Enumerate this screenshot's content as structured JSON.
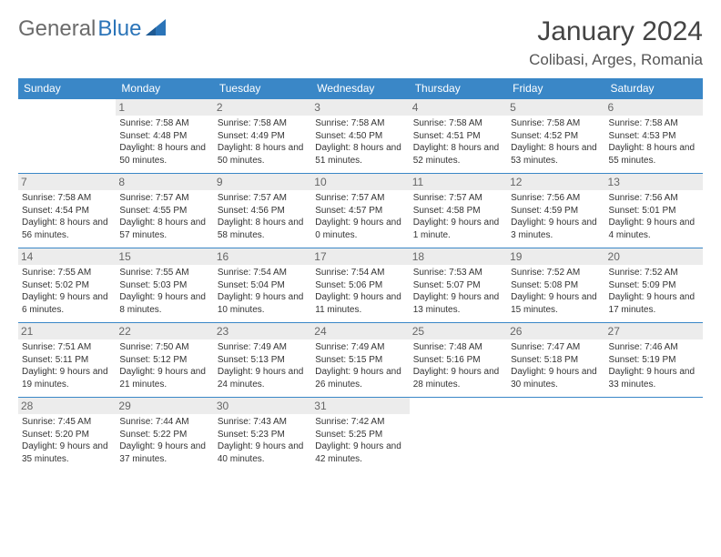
{
  "logo": {
    "text1": "General",
    "text2": "Blue"
  },
  "title": "January 2024",
  "location": "Colibasi, Arges, Romania",
  "colors": {
    "header_bg": "#3a87c7",
    "header_text": "#ffffff",
    "border": "#3a87c7",
    "daynum_bg": "#ececec",
    "logo_gray": "#6b6b6b",
    "logo_blue": "#2b74b8"
  },
  "weekdays": [
    "Sunday",
    "Monday",
    "Tuesday",
    "Wednesday",
    "Thursday",
    "Friday",
    "Saturday"
  ],
  "grid": {
    "start_weekday": 1,
    "days_in_month": 31
  },
  "days": {
    "1": {
      "sunrise": "7:58 AM",
      "sunset": "4:48 PM",
      "daylight": "8 hours and 50 minutes."
    },
    "2": {
      "sunrise": "7:58 AM",
      "sunset": "4:49 PM",
      "daylight": "8 hours and 50 minutes."
    },
    "3": {
      "sunrise": "7:58 AM",
      "sunset": "4:50 PM",
      "daylight": "8 hours and 51 minutes."
    },
    "4": {
      "sunrise": "7:58 AM",
      "sunset": "4:51 PM",
      "daylight": "8 hours and 52 minutes."
    },
    "5": {
      "sunrise": "7:58 AM",
      "sunset": "4:52 PM",
      "daylight": "8 hours and 53 minutes."
    },
    "6": {
      "sunrise": "7:58 AM",
      "sunset": "4:53 PM",
      "daylight": "8 hours and 55 minutes."
    },
    "7": {
      "sunrise": "7:58 AM",
      "sunset": "4:54 PM",
      "daylight": "8 hours and 56 minutes."
    },
    "8": {
      "sunrise": "7:57 AM",
      "sunset": "4:55 PM",
      "daylight": "8 hours and 57 minutes."
    },
    "9": {
      "sunrise": "7:57 AM",
      "sunset": "4:56 PM",
      "daylight": "8 hours and 58 minutes."
    },
    "10": {
      "sunrise": "7:57 AM",
      "sunset": "4:57 PM",
      "daylight": "9 hours and 0 minutes."
    },
    "11": {
      "sunrise": "7:57 AM",
      "sunset": "4:58 PM",
      "daylight": "9 hours and 1 minute."
    },
    "12": {
      "sunrise": "7:56 AM",
      "sunset": "4:59 PM",
      "daylight": "9 hours and 3 minutes."
    },
    "13": {
      "sunrise": "7:56 AM",
      "sunset": "5:01 PM",
      "daylight": "9 hours and 4 minutes."
    },
    "14": {
      "sunrise": "7:55 AM",
      "sunset": "5:02 PM",
      "daylight": "9 hours and 6 minutes."
    },
    "15": {
      "sunrise": "7:55 AM",
      "sunset": "5:03 PM",
      "daylight": "9 hours and 8 minutes."
    },
    "16": {
      "sunrise": "7:54 AM",
      "sunset": "5:04 PM",
      "daylight": "9 hours and 10 minutes."
    },
    "17": {
      "sunrise": "7:54 AM",
      "sunset": "5:06 PM",
      "daylight": "9 hours and 11 minutes."
    },
    "18": {
      "sunrise": "7:53 AM",
      "sunset": "5:07 PM",
      "daylight": "9 hours and 13 minutes."
    },
    "19": {
      "sunrise": "7:52 AM",
      "sunset": "5:08 PM",
      "daylight": "9 hours and 15 minutes."
    },
    "20": {
      "sunrise": "7:52 AM",
      "sunset": "5:09 PM",
      "daylight": "9 hours and 17 minutes."
    },
    "21": {
      "sunrise": "7:51 AM",
      "sunset": "5:11 PM",
      "daylight": "9 hours and 19 minutes."
    },
    "22": {
      "sunrise": "7:50 AM",
      "sunset": "5:12 PM",
      "daylight": "9 hours and 21 minutes."
    },
    "23": {
      "sunrise": "7:49 AM",
      "sunset": "5:13 PM",
      "daylight": "9 hours and 24 minutes."
    },
    "24": {
      "sunrise": "7:49 AM",
      "sunset": "5:15 PM",
      "daylight": "9 hours and 26 minutes."
    },
    "25": {
      "sunrise": "7:48 AM",
      "sunset": "5:16 PM",
      "daylight": "9 hours and 28 minutes."
    },
    "26": {
      "sunrise": "7:47 AM",
      "sunset": "5:18 PM",
      "daylight": "9 hours and 30 minutes."
    },
    "27": {
      "sunrise": "7:46 AM",
      "sunset": "5:19 PM",
      "daylight": "9 hours and 33 minutes."
    },
    "28": {
      "sunrise": "7:45 AM",
      "sunset": "5:20 PM",
      "daylight": "9 hours and 35 minutes."
    },
    "29": {
      "sunrise": "7:44 AM",
      "sunset": "5:22 PM",
      "daylight": "9 hours and 37 minutes."
    },
    "30": {
      "sunrise": "7:43 AM",
      "sunset": "5:23 PM",
      "daylight": "9 hours and 40 minutes."
    },
    "31": {
      "sunrise": "7:42 AM",
      "sunset": "5:25 PM",
      "daylight": "9 hours and 42 minutes."
    }
  },
  "labels": {
    "sunrise_prefix": "Sunrise: ",
    "sunset_prefix": "Sunset: ",
    "daylight_prefix": "Daylight: "
  }
}
